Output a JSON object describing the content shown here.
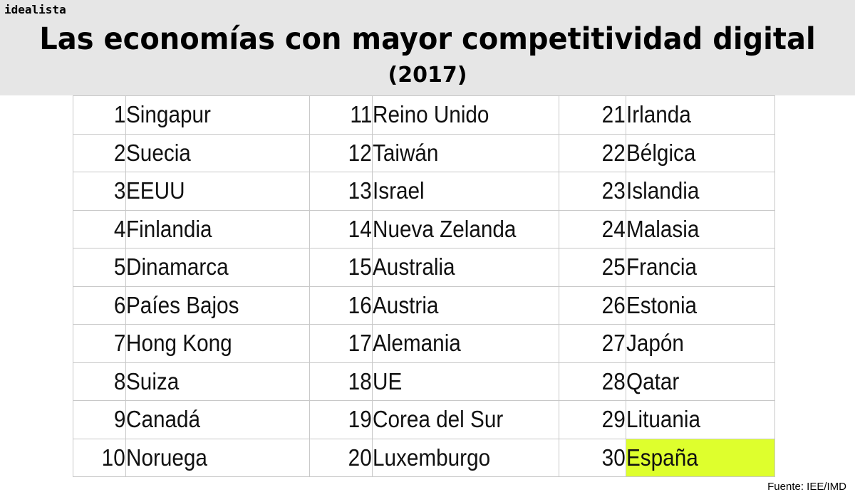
{
  "brand": "idealista",
  "title": "Las economías con mayor competitividad digital",
  "subtitle": "(2017)",
  "ranking": [
    {
      "rank": "1",
      "name": "Singapur"
    },
    {
      "rank": "2",
      "name": "Suecia"
    },
    {
      "rank": "3",
      "name": "EEUU"
    },
    {
      "rank": "4",
      "name": "Finlandia"
    },
    {
      "rank": "5",
      "name": "Dinamarca"
    },
    {
      "rank": "6",
      "name": "Paíes Bajos"
    },
    {
      "rank": "7",
      "name": "Hong Kong"
    },
    {
      "rank": "8",
      "name": "Suiza"
    },
    {
      "rank": "9",
      "name": "Canadá"
    },
    {
      "rank": "10",
      "name": "Noruega"
    },
    {
      "rank": "11",
      "name": "Reino Unido"
    },
    {
      "rank": "12",
      "name": "Taiwán"
    },
    {
      "rank": "13",
      "name": "Israel"
    },
    {
      "rank": "14",
      "name": "Nueva Zelanda"
    },
    {
      "rank": "15",
      "name": "Australia"
    },
    {
      "rank": "16",
      "name": "Austria"
    },
    {
      "rank": "17",
      "name": "Alemania"
    },
    {
      "rank": "18",
      "name": "UE"
    },
    {
      "rank": "19",
      "name": "Corea del Sur"
    },
    {
      "rank": "20",
      "name": "Luxemburgo"
    },
    {
      "rank": "21",
      "name": "Irlanda"
    },
    {
      "rank": "22",
      "name": "Bélgica"
    },
    {
      "rank": "23",
      "name": "Islandia"
    },
    {
      "rank": "24",
      "name": "Malasia"
    },
    {
      "rank": "25",
      "name": "Francia"
    },
    {
      "rank": "26",
      "name": "Estonia"
    },
    {
      "rank": "27",
      "name": "Japón"
    },
    {
      "rank": "28",
      "name": "Qatar"
    },
    {
      "rank": "29",
      "name": "Lituania"
    },
    {
      "rank": "30",
      "name": "España",
      "highlight": true
    }
  ],
  "highlight_color": "#deff2d",
  "source": "Fuente: IEE/IMD"
}
